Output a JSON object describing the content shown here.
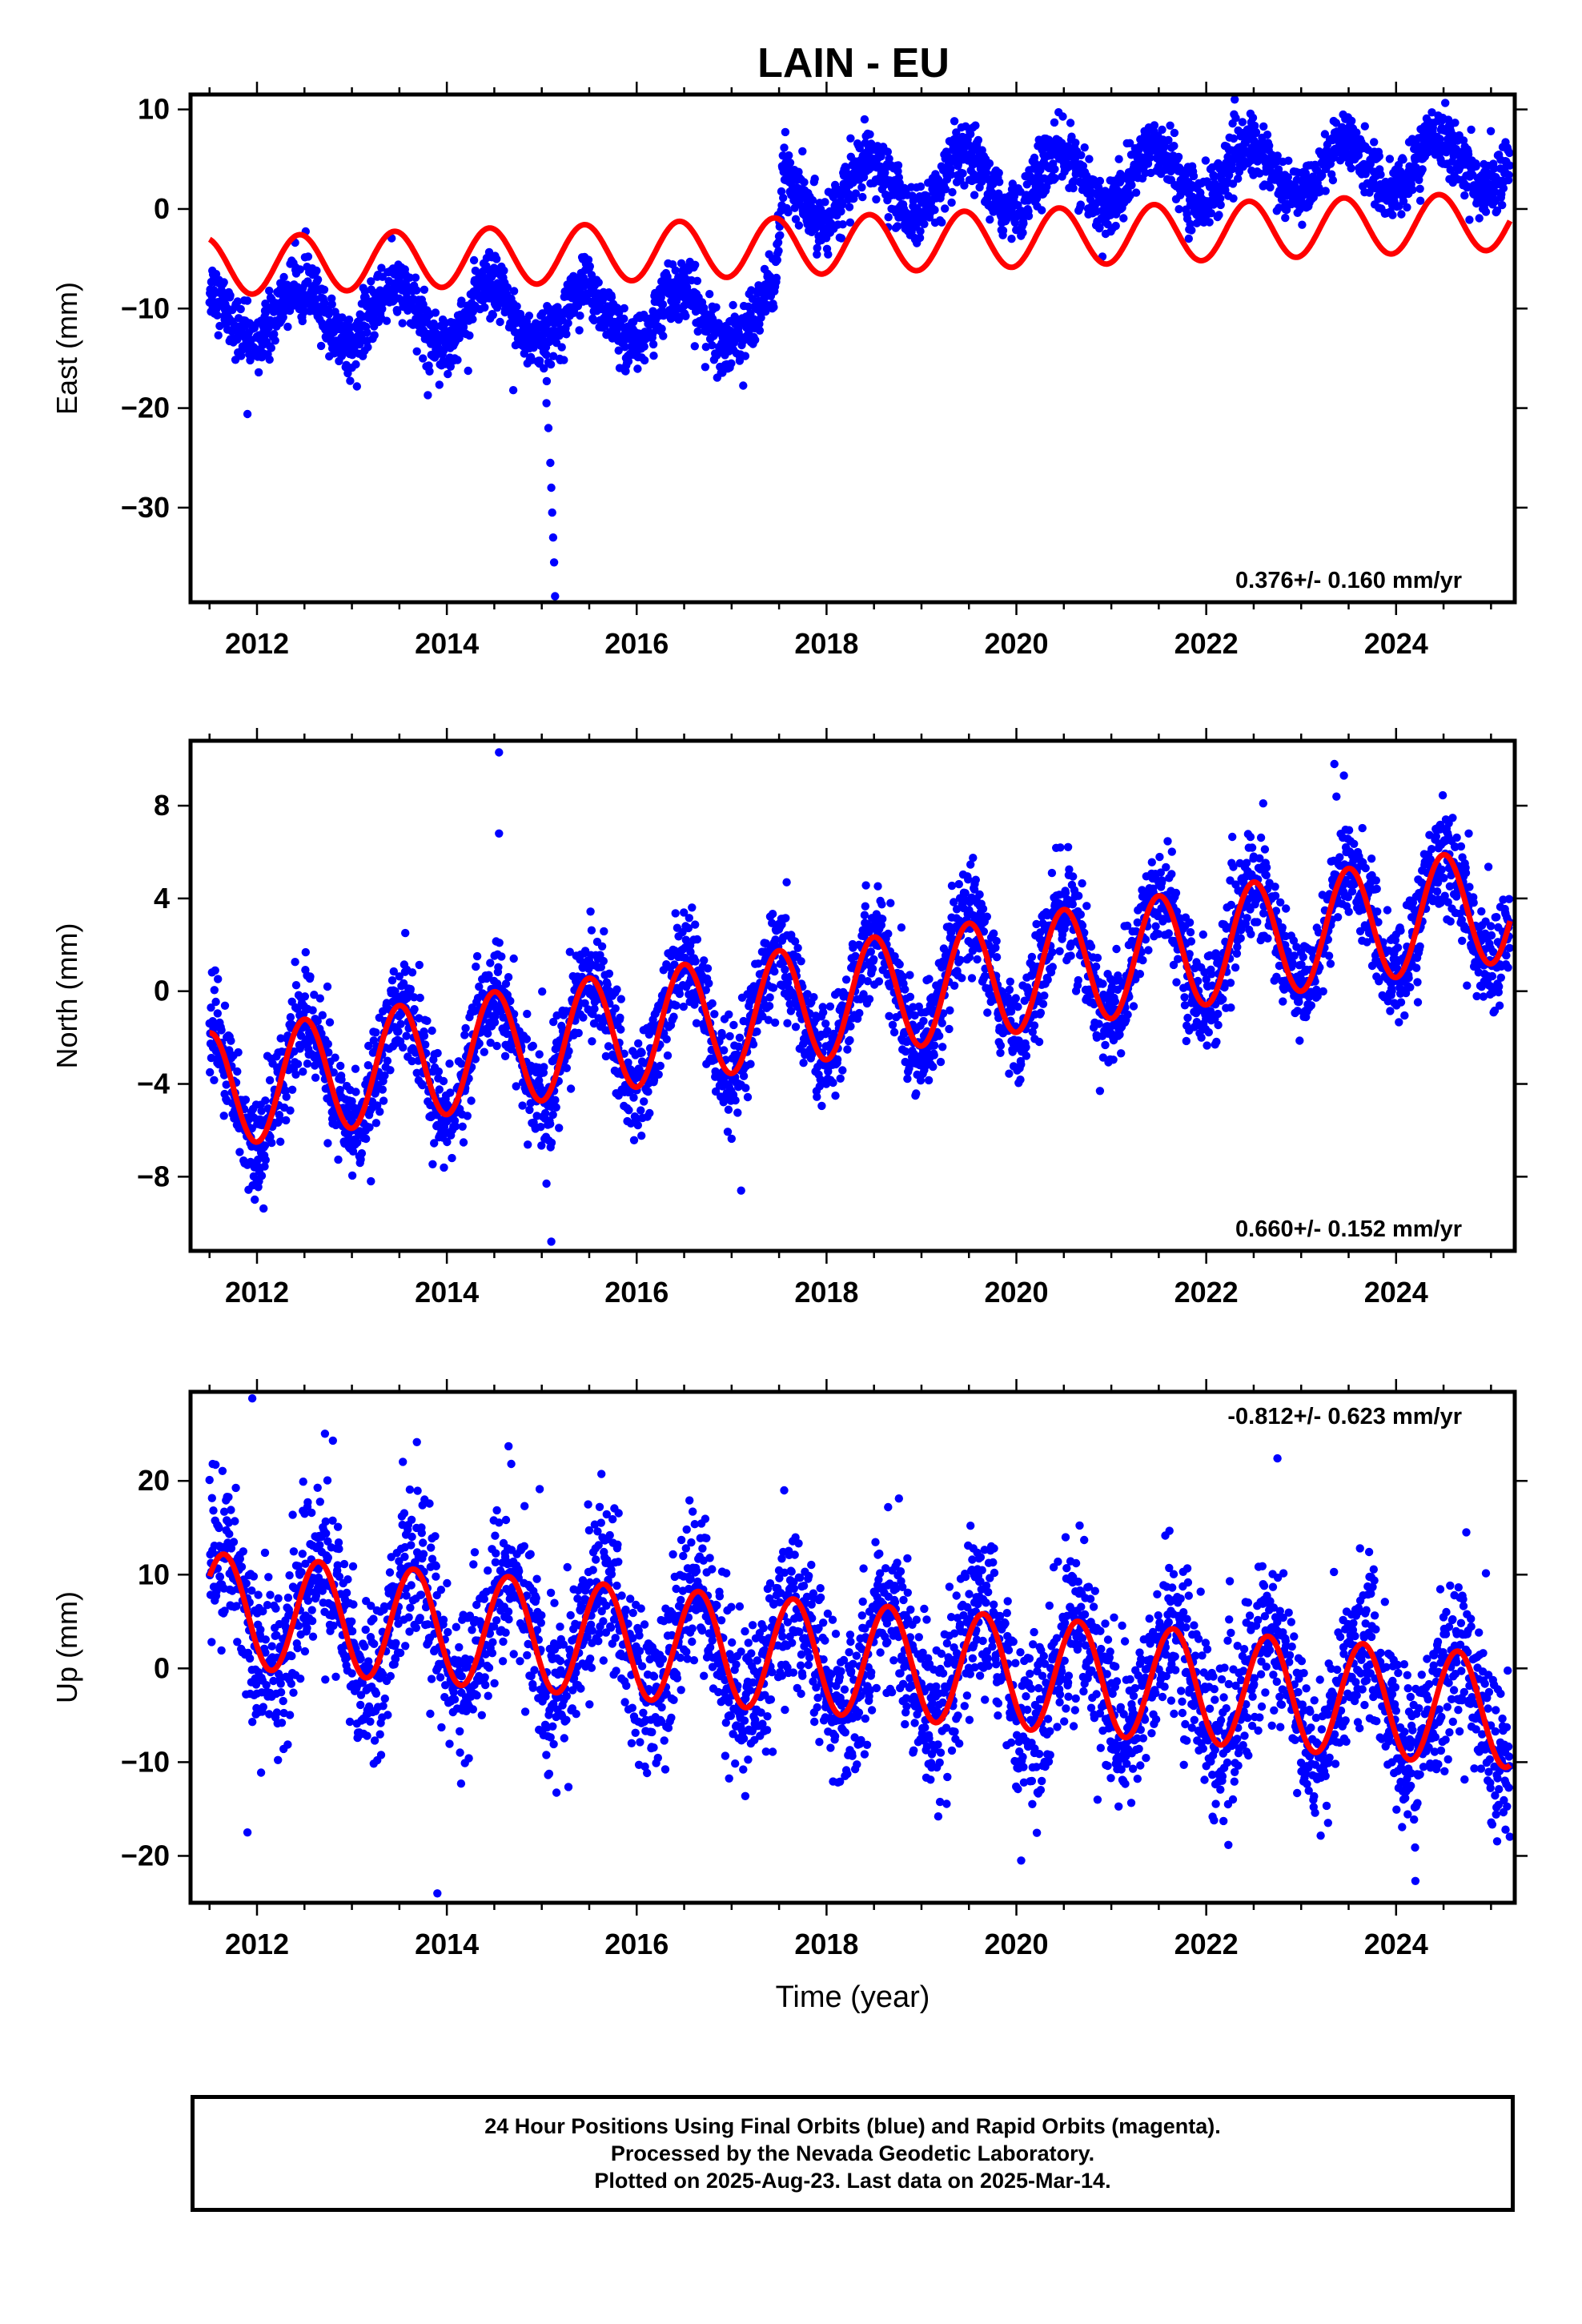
{
  "title": "LAIN - EU",
  "caption": [
    "24 Hour Positions Using Final Orbits (blue) and Rapid Orbits (magenta).",
    "Processed by the Nevada Geodetic Laboratory.",
    "Plotted on 2025-Aug-23. Last data on 2025-Mar-14."
  ],
  "colors": {
    "final_orbits": "#0000ff",
    "model_fit": "#ff0000",
    "frame": "#000000"
  },
  "chart_data": [
    {
      "type": "scatter",
      "component": "East",
      "ylabel": "East (mm)",
      "xlim": [
        2011.3,
        2025.25
      ],
      "ylim": [
        -39.5,
        11.5
      ],
      "xticks": [
        2012,
        2014,
        2016,
        2018,
        2020,
        2022,
        2024
      ],
      "xtick_labels": [
        "2012",
        "2014",
        "2016",
        "2018",
        "2020",
        "2022",
        "2024"
      ],
      "yticks": [
        10,
        0,
        -10,
        -20,
        -30
      ],
      "ytick_labels": [
        "10",
        "0",
        "−10",
        "−20",
        "−30"
      ],
      "velocity_label": "0.376+/- 0.160 mm/yr",
      "velocity_position": "bottom-right",
      "data_span": [
        2011.5,
        2025.2
      ],
      "series": [
        {
          "kind": "points",
          "daily_solutions": "final orbits",
          "trend": {
            "x": [
              2011.5,
              2017.45,
              2017.55,
              2025.2
            ],
            "y": [
              -10.5,
              -10.8,
              1.5,
              4.9
            ]
          },
          "seasonal": {
            "amplitude": 2.8,
            "peak": 2011.45
          },
          "offsets": [
            {
              "x": 2017.5,
              "size": 11.5
            }
          ],
          "scatter_sd": 1.5,
          "outliers": [
            {
              "x": 2011.9,
              "y": -20.6
            },
            {
              "x": 2013.8,
              "y": -18.7
            },
            {
              "x": 2014.7,
              "y": -18.2
            },
            {
              "x": 2015.05,
              "y": -19.5
            },
            {
              "x": 2015.07,
              "y": -22.0
            },
            {
              "x": 2015.09,
              "y": -25.5
            },
            {
              "x": 2015.1,
              "y": -28.0
            },
            {
              "x": 2015.11,
              "y": -30.5
            },
            {
              "x": 2015.12,
              "y": -33.0
            },
            {
              "x": 2015.13,
              "y": -35.5
            },
            {
              "x": 2015.14,
              "y": -38.9
            }
          ]
        },
        {
          "kind": "line",
          "trend": {
            "x": [
              2011.5,
              2025.2
            ],
            "y": [
              -5.8,
              -1.2
            ]
          },
          "seasonal": {
            "amplitude": 2.9,
            "peak": 2011.45
          }
        }
      ]
    },
    {
      "type": "scatter",
      "component": "North",
      "ylabel": "North (mm)",
      "xlim": [
        2011.3,
        2025.25
      ],
      "ylim": [
        -11.2,
        10.8
      ],
      "xticks": [
        2012,
        2014,
        2016,
        2018,
        2020,
        2022,
        2024
      ],
      "xtick_labels": [
        "2012",
        "2014",
        "2016",
        "2018",
        "2020",
        "2022",
        "2024"
      ],
      "yticks": [
        8,
        4,
        0,
        -4,
        -8
      ],
      "ytick_labels": [
        "8",
        "4",
        "0",
        "−4",
        "−8"
      ],
      "velocity_label": "0.660+/- 0.152 mm/yr",
      "velocity_position": "bottom-right",
      "data_span": [
        2011.5,
        2025.2
      ],
      "series": [
        {
          "kind": "points",
          "daily_solutions": "final orbits",
          "trend": {
            "x": [
              2011.5,
              2025.2
            ],
            "y": [
              -4.3,
              3.8
            ]
          },
          "seasonal": {
            "amplitude": 2.5,
            "peak": 2011.5
          },
          "scatter_sd": 1.1,
          "outliers": [
            {
              "x": 2014.55,
              "y": 10.3
            },
            {
              "x": 2014.55,
              "y": 6.8
            },
            {
              "x": 2023.35,
              "y": 9.8
            },
            {
              "x": 2023.45,
              "y": 9.3
            },
            {
              "x": 2015.05,
              "y": -8.3
            },
            {
              "x": 2015.1,
              "y": -10.8
            },
            {
              "x": 2013.2,
              "y": -8.2
            },
            {
              "x": 2017.1,
              "y": -8.6
            },
            {
              "x": 2022.6,
              "y": 8.1
            }
          ]
        },
        {
          "kind": "line",
          "trend": {
            "x": [
              2011.5,
              2025.2
            ],
            "y": [
              -4.3,
              3.8
            ]
          },
          "seasonal": {
            "amplitude": 2.5,
            "peak": 2011.5
          }
        }
      ]
    },
    {
      "type": "scatter",
      "component": "Up",
      "ylabel": "Up (mm)",
      "xlabel": "Time (year)",
      "xlim": [
        2011.3,
        2025.25
      ],
      "ylim": [
        -25.0,
        29.5
      ],
      "xticks": [
        2012,
        2014,
        2016,
        2018,
        2020,
        2022,
        2024
      ],
      "xtick_labels": [
        "2012",
        "2014",
        "2016",
        "2018",
        "2020",
        "2022",
        "2024"
      ],
      "yticks": [
        20,
        10,
        0,
        -10,
        -20
      ],
      "ytick_labels": [
        "20",
        "10",
        "0",
        "−10",
        "−20"
      ],
      "velocity_label": "-0.812+/- 0.623 mm/yr",
      "velocity_position": "top-right",
      "data_span": [
        2011.5,
        2025.2
      ],
      "series": [
        {
          "kind": "points",
          "daily_solutions": "final orbits",
          "trend": {
            "x": [
              2011.5,
              2025.2
            ],
            "y": [
              6.3,
              -4.6
            ]
          },
          "seasonal": {
            "amplitude": 6.0,
            "peak": 2011.65
          },
          "scatter_sd": 4.3,
          "outliers": [
            {
              "x": 2011.95,
              "y": 28.8
            },
            {
              "x": 2013.9,
              "y": -24.0
            },
            {
              "x": 2020.05,
              "y": -20.5
            },
            {
              "x": 2011.9,
              "y": -17.5
            },
            {
              "x": 2012.8,
              "y": 24.3
            },
            {
              "x": 2014.65,
              "y": 23.7
            },
            {
              "x": 2022.75,
              "y": 22.4
            }
          ]
        },
        {
          "kind": "line",
          "trend": {
            "x": [
              2011.5,
              2025.2
            ],
            "y": [
              6.3,
              -4.6
            ]
          },
          "seasonal": {
            "amplitude": 6.0,
            "peak": 2011.65
          }
        }
      ]
    }
  ]
}
